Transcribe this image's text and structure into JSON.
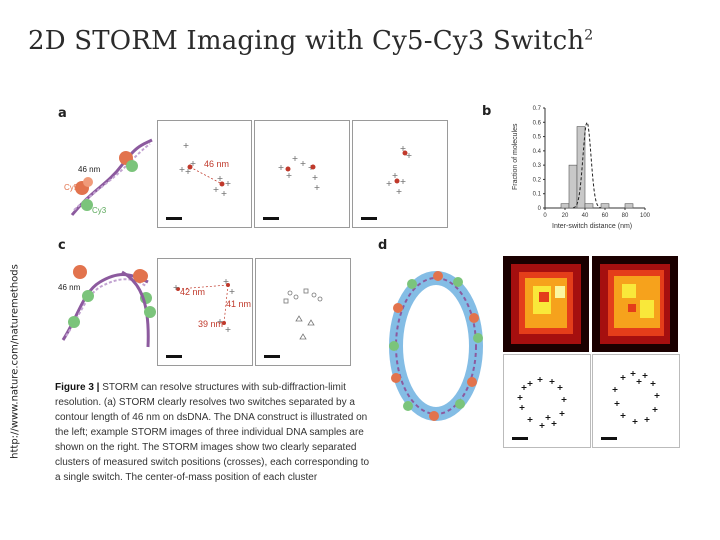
{
  "slide": {
    "title": "2D STORM Imaging with Cy5-Cy3 Switch",
    "title_sup": "2",
    "side_url": "http://www.nature.com/naturemethods"
  },
  "panels": {
    "a": "a",
    "b": "b",
    "c": "c",
    "d": "d",
    "a_len": "46 nm",
    "a_cy5": "Cy5",
    "a_cy3": "Cy3",
    "a_sample_len": "46 nm",
    "c_len": "46 nm",
    "c_d1": "42 nm",
    "c_d2": "41 nm",
    "c_d3": "39 nm"
  },
  "caption": {
    "fig": "Figure 3 |",
    "text": " STORM can resolve structures with sub-diffraction-limit resolution. (a) STORM clearly resolves two switches separated by a contour length of 46 nm on dsDNA. The DNA construct is illustrated on the left; example STORM images of three individual DNA samples are shown on the right. The STORM images show two clearly separated clusters of measured switch positions (crosses), each corresponding to a single switch. The center-of-mass position of each cluster"
  },
  "chart_data": {
    "type": "bar",
    "xlabel": "Inter-switch distance (nm)",
    "ylabel": "Fraction of molecules",
    "xlim": [
      0,
      100
    ],
    "ylim": [
      0,
      0.7
    ],
    "xticks": [
      "0",
      "20",
      "40",
      "60",
      "80",
      "100"
    ],
    "yticks": [
      "0",
      "0.1",
      "0.2",
      "0.3",
      "0.4",
      "0.5",
      "0.6",
      "0.7"
    ],
    "bin_width": 8,
    "bin_starts": [
      0,
      8,
      16,
      24,
      32,
      40,
      48,
      56,
      64,
      72,
      80,
      88
    ],
    "values": [
      0.0,
      0.0,
      0.03,
      0.3,
      0.57,
      0.03,
      0.0,
      0.03,
      0.0,
      0.0,
      0.03,
      0.0
    ],
    "fit_curve": true
  },
  "colors": {
    "background": "#ffffff",
    "title": "#2b2b2b",
    "bar_fill": "#c8c8c8",
    "fit_line": "#222222",
    "cy5": "#e2734d",
    "cy3": "#7bc47b",
    "dna": "#8c5a9e",
    "membrane": "#6fb2e0"
  }
}
